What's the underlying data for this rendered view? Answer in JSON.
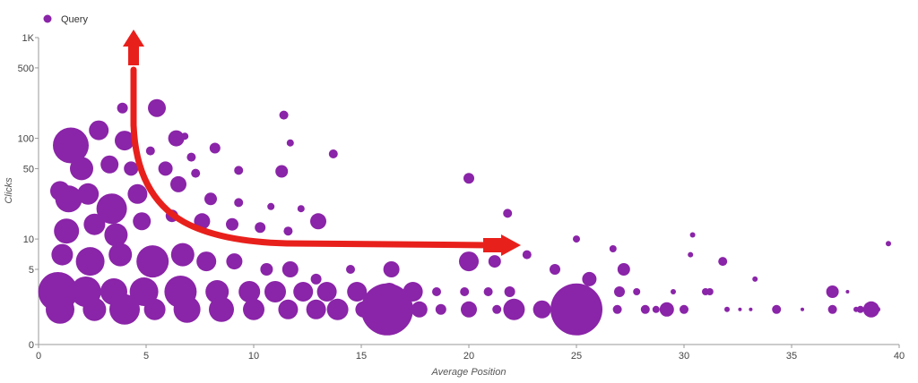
{
  "chart_data": {
    "type": "scatter",
    "legend": {
      "position": "top-left",
      "entries": [
        {
          "label": "Query",
          "color": "#8a24a8"
        }
      ]
    },
    "xlabel": "Average Position",
    "ylabel": "Clicks",
    "xlim": [
      0,
      40
    ],
    "y_scale": "log",
    "x_ticks": [
      "0",
      "5",
      "10",
      "15",
      "20",
      "25",
      "30",
      "35",
      "40"
    ],
    "y_ticks": [
      {
        "label": "1K",
        "value": 1000
      },
      {
        "label": "500",
        "value": 500
      },
      {
        "label": "100",
        "value": 100
      },
      {
        "label": "50",
        "value": 50
      },
      {
        "label": "10",
        "value": 10
      },
      {
        "label": "5",
        "value": 5
      },
      {
        "label": "0",
        "value": 0
      }
    ],
    "series": [
      {
        "name": "Query",
        "color": "#8a24a8",
        "points": [
          [
            1.5,
            85,
            20
          ],
          [
            2.8,
            120,
            11
          ],
          [
            3.9,
            200,
            6
          ],
          [
            5.5,
            200,
            10
          ],
          [
            6.4,
            100,
            9
          ],
          [
            6.8,
            105,
            4
          ],
          [
            8.2,
            80,
            6
          ],
          [
            11.4,
            170,
            5
          ],
          [
            11.7,
            90,
            4
          ],
          [
            13.7,
            70,
            5
          ],
          [
            4.0,
            95,
            11
          ],
          [
            5.2,
            75,
            5
          ],
          [
            7.1,
            65,
            5
          ],
          [
            2.0,
            50,
            13
          ],
          [
            3.3,
            55,
            10
          ],
          [
            4.3,
            50,
            8
          ],
          [
            5.9,
            50,
            8
          ],
          [
            7.3,
            45,
            5
          ],
          [
            9.3,
            48,
            5
          ],
          [
            11.3,
            47,
            7
          ],
          [
            1.0,
            30,
            11
          ],
          [
            1.4,
            25,
            15
          ],
          [
            2.3,
            28,
            12
          ],
          [
            3.4,
            20,
            17
          ],
          [
            4.6,
            28,
            11
          ],
          [
            6.5,
            35,
            9
          ],
          [
            8.0,
            25,
            7
          ],
          [
            9.3,
            23,
            5
          ],
          [
            10.8,
            21,
            4
          ],
          [
            12.2,
            20,
            4
          ],
          [
            1.3,
            12,
            14
          ],
          [
            2.6,
            14,
            12
          ],
          [
            3.6,
            11,
            13
          ],
          [
            4.8,
            15,
            10
          ],
          [
            6.2,
            17,
            7
          ],
          [
            7.6,
            15,
            9
          ],
          [
            9.0,
            14,
            7
          ],
          [
            10.3,
            13,
            6
          ],
          [
            11.6,
            12,
            5
          ],
          [
            13.0,
            15,
            9
          ],
          [
            1.1,
            7,
            12
          ],
          [
            2.4,
            6,
            16
          ],
          [
            3.8,
            7,
            13
          ],
          [
            5.3,
            6,
            18
          ],
          [
            6.7,
            7,
            13
          ],
          [
            7.8,
            6,
            11
          ],
          [
            9.1,
            6,
            9
          ],
          [
            10.6,
            5,
            7
          ],
          [
            11.7,
            5,
            9
          ],
          [
            12.9,
            4,
            6
          ],
          [
            14.5,
            5,
            5
          ],
          [
            16.4,
            5,
            9
          ],
          [
            0.9,
            3,
            22
          ],
          [
            2.2,
            3,
            17
          ],
          [
            3.5,
            3,
            15
          ],
          [
            4.9,
            3,
            16
          ],
          [
            6.6,
            3,
            18
          ],
          [
            8.3,
            3,
            13
          ],
          [
            9.8,
            3,
            12
          ],
          [
            11.0,
            3,
            12
          ],
          [
            12.3,
            3,
            11
          ],
          [
            13.4,
            3,
            11
          ],
          [
            14.8,
            3,
            11
          ],
          [
            16.3,
            3,
            10
          ],
          [
            17.4,
            3,
            11
          ],
          [
            18.5,
            3,
            5
          ],
          [
            19.8,
            3,
            5
          ],
          [
            20.9,
            3,
            5
          ],
          [
            21.9,
            3,
            6
          ],
          [
            1.0,
            2,
            16
          ],
          [
            2.6,
            2,
            13
          ],
          [
            4.0,
            2,
            17
          ],
          [
            5.4,
            2,
            12
          ],
          [
            6.9,
            2,
            15
          ],
          [
            8.5,
            2,
            14
          ],
          [
            10.0,
            2,
            12
          ],
          [
            11.6,
            2,
            11
          ],
          [
            12.9,
            2,
            11
          ],
          [
            13.9,
            2,
            12
          ],
          [
            15.1,
            2,
            9
          ],
          [
            16.2,
            2,
            29
          ],
          [
            17.7,
            2,
            9
          ],
          [
            18.7,
            2,
            6
          ],
          [
            20.0,
            2,
            9
          ],
          [
            21.3,
            2,
            5
          ],
          [
            22.1,
            2,
            12
          ],
          [
            23.4,
            2,
            10
          ],
          [
            24.0,
            2,
            5
          ],
          [
            20.0,
            40,
            6
          ],
          [
            21.8,
            18,
            5
          ],
          [
            20.0,
            6,
            11
          ],
          [
            21.2,
            6,
            7
          ],
          [
            22.7,
            7,
            5
          ],
          [
            25.0,
            10,
            4
          ],
          [
            24.0,
            5,
            6
          ],
          [
            25.6,
            4,
            8
          ],
          [
            25.4,
            3,
            7
          ],
          [
            27.2,
            5,
            7
          ],
          [
            25.9,
            2,
            5
          ],
          [
            25.0,
            2,
            29
          ],
          [
            27.0,
            3,
            6
          ],
          [
            26.9,
            2,
            5
          ],
          [
            27.8,
            3,
            4
          ],
          [
            28.2,
            2,
            5
          ],
          [
            29.2,
            2,
            8
          ],
          [
            28.7,
            2,
            4
          ],
          [
            30.0,
            2,
            5
          ],
          [
            31.8,
            6,
            5
          ],
          [
            30.4,
            11,
            3
          ],
          [
            30.3,
            7,
            3
          ],
          [
            31.0,
            3,
            4
          ],
          [
            31.2,
            3,
            4
          ],
          [
            32.0,
            2,
            3
          ],
          [
            33.3,
            4,
            3
          ],
          [
            34.3,
            2,
            5
          ],
          [
            36.9,
            3,
            7
          ],
          [
            36.9,
            2,
            5
          ],
          [
            38.7,
            2,
            9
          ],
          [
            38.2,
            2,
            4
          ],
          [
            39.5,
            9,
            3
          ],
          [
            37.6,
            3,
            2
          ],
          [
            35.5,
            2,
            2
          ],
          [
            33.1,
            2,
            2
          ],
          [
            26.7,
            8,
            4
          ],
          [
            29.5,
            3,
            3
          ],
          [
            32.6,
            2,
            2
          ],
          [
            38.0,
            2,
            3
          ],
          [
            39.0,
            2,
            3
          ]
        ]
      }
    ]
  },
  "annotation": {
    "type": "L-shaped arrow",
    "color": "#e8201c"
  }
}
